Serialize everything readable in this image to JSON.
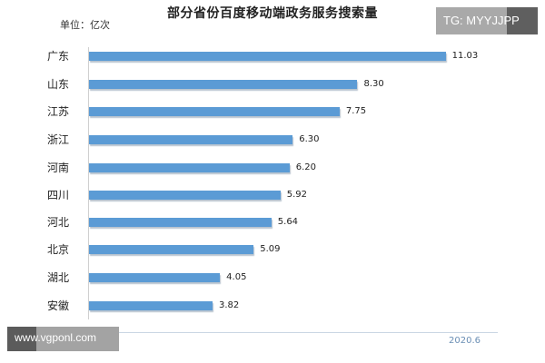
{
  "chart_data": {
    "type": "bar",
    "orientation": "horizontal",
    "title": "部分省份百度移动端政务服务搜索量",
    "unit_label": "单位：亿次",
    "xlabel": "",
    "ylabel": "",
    "categories": [
      "广东",
      "山东",
      "江苏",
      "浙江",
      "河南",
      "四川",
      "河北",
      "北京",
      "湖北",
      "安徽"
    ],
    "values": [
      11.03,
      8.3,
      7.75,
      6.3,
      6.2,
      5.92,
      5.64,
      5.09,
      4.05,
      3.82
    ],
    "value_labels": [
      "11.03",
      "8.30",
      "7.75",
      "6.30",
      "6.20",
      "5.92",
      "5.64",
      "5.09",
      "4.05",
      "3.82"
    ],
    "xlim": [
      0,
      11.5
    ],
    "grid": false,
    "legend": null,
    "bar_color": "#5b9bd5",
    "footer_date": "2020.6"
  },
  "watermarks": {
    "top_right": "TG: MYYJJPP",
    "bottom_left": "www.vgponl.com"
  }
}
